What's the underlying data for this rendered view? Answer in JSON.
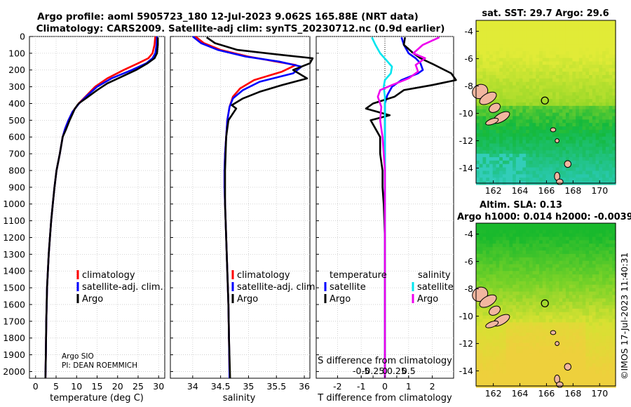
{
  "header": {
    "title_line1": "Argo profile: aoml 5905723_180 12-Jul-2023 9.062S 165.88E (NRT data)",
    "title_line2": "Climatology: CARS2009. Satellite-adj clim: synTS_20230712.nc (0.9d earlier)"
  },
  "credit": {
    "line1": "Argo SIO",
    "line2": "PI: DEAN ROEMMICH"
  },
  "side_stamp": "©IMOS 17-Jul-2023 11:40:31",
  "colors": {
    "clim": "#ff0000",
    "sat": "#0000ff",
    "argo": "#000000",
    "s_sat": "#00e5ee",
    "s_argo": "#ee00ee"
  },
  "depth_axis": {
    "ticks": [
      0,
      100,
      200,
      300,
      400,
      500,
      600,
      700,
      800,
      900,
      1000,
      1100,
      1200,
      1300,
      1400,
      1500,
      1600,
      1700,
      1800,
      1900,
      2000
    ],
    "labels": [
      "0",
      "100",
      "200",
      "300",
      "400",
      "500",
      "600",
      "700",
      "800",
      "900",
      "1000",
      "1100",
      "1200",
      "1300",
      "1400",
      "1500",
      "1600",
      "1700",
      "1800",
      "1900",
      "2000"
    ],
    "range": [
      0,
      2040
    ]
  },
  "chart_data": [
    {
      "type": "line",
      "id": "temperature",
      "xlabel": "temperature (deg C)",
      "xlim": [
        -1.5,
        31.5
      ],
      "xticks": [
        0,
        5,
        10,
        15,
        20,
        25,
        30
      ],
      "xtick_labels": [
        "0",
        "5",
        "10",
        "15",
        "20",
        "25",
        "30"
      ],
      "legend": [
        "climatology",
        "satellite-adj. clim.",
        "Argo"
      ],
      "series": [
        {
          "name": "climatology",
          "color": "clim",
          "x": [
            29.2,
            29.0,
            28.5,
            27.5,
            25.0,
            21.5,
            17.5,
            14.5,
            12.5,
            10.5,
            9.0,
            8.0,
            7.2,
            6.6,
            5.9,
            5.1,
            4.6,
            4.2,
            3.8,
            3.5,
            3.2,
            3.0,
            2.8,
            2.7,
            2.6,
            2.5,
            2.4
          ],
          "y": [
            0,
            50,
            100,
            130,
            160,
            200,
            250,
            300,
            350,
            400,
            450,
            500,
            550,
            600,
            700,
            800,
            900,
            1000,
            1100,
            1200,
            1300,
            1400,
            1500,
            1600,
            1700,
            1900,
            2040
          ]
        },
        {
          "name": "satellite-adj. clim.",
          "color": "sat",
          "x": [
            29.6,
            29.5,
            29.2,
            28.5,
            27.0,
            23.5,
            18.5,
            15.0,
            12.7,
            10.6,
            9.0,
            8.0,
            7.2,
            6.6,
            5.9,
            5.1,
            4.6,
            4.2,
            3.8,
            3.5,
            3.2,
            3.0,
            2.8,
            2.7,
            2.6,
            2.5,
            2.4
          ],
          "y": [
            0,
            50,
            100,
            130,
            160,
            200,
            250,
            300,
            350,
            400,
            450,
            500,
            550,
            600,
            700,
            800,
            900,
            1000,
            1100,
            1200,
            1300,
            1400,
            1500,
            1600,
            1700,
            1900,
            2040
          ]
        },
        {
          "name": "Argo",
          "color": "argo",
          "x": [
            29.8,
            29.8,
            29.6,
            29.0,
            27.3,
            24.5,
            21.0,
            17.5,
            15.0,
            12.8,
            10.5,
            9.6,
            8.3,
            7.5,
            6.6,
            5.9,
            5.1,
            4.6,
            4.2,
            3.8,
            3.5,
            3.2,
            3.0,
            2.8,
            2.6,
            2.5,
            2.4
          ],
          "y": [
            5,
            50,
            100,
            130,
            160,
            200,
            240,
            280,
            320,
            360,
            400,
            430,
            500,
            550,
            600,
            700,
            800,
            900,
            1000,
            1100,
            1200,
            1300,
            1400,
            1500,
            1700,
            1900,
            2040
          ]
        }
      ]
    },
    {
      "type": "line",
      "id": "salinity",
      "xlabel": "salinity",
      "xlim": [
        33.6,
        36.1
      ],
      "xticks": [
        34,
        34.5,
        35,
        35.5,
        36
      ],
      "xtick_labels": [
        "34",
        "34.5",
        "35",
        "35.5",
        "36"
      ],
      "legend": [
        "climatology",
        "satellite-adj. clim.",
        "Argo"
      ],
      "series": [
        {
          "name": "climatology",
          "color": "clim",
          "x": [
            34.05,
            34.2,
            34.5,
            35.0,
            35.5,
            35.85,
            35.6,
            35.1,
            34.85,
            34.72,
            34.66,
            34.62,
            34.6,
            34.58,
            34.57,
            34.57,
            34.58,
            34.6,
            34.62,
            34.64,
            34.65,
            34.66
          ],
          "y": [
            0,
            40,
            80,
            120,
            150,
            170,
            210,
            260,
            310,
            360,
            420,
            500,
            600,
            700,
            800,
            900,
            1000,
            1200,
            1400,
            1600,
            1800,
            2040
          ]
        },
        {
          "name": "satellite-adj. clim.",
          "color": "sat",
          "x": [
            34.0,
            34.15,
            34.45,
            34.95,
            35.55,
            35.95,
            35.8,
            35.2,
            34.9,
            34.72,
            34.66,
            34.62,
            34.6,
            34.58,
            34.57,
            34.57,
            34.58,
            34.6,
            34.62,
            34.64,
            34.65,
            34.66
          ],
          "y": [
            0,
            40,
            80,
            120,
            150,
            180,
            220,
            270,
            320,
            370,
            420,
            500,
            600,
            700,
            800,
            900,
            1000,
            1200,
            1400,
            1600,
            1800,
            2040
          ]
        },
        {
          "name": "Argo",
          "color": "argo",
          "x": [
            34.25,
            34.4,
            34.8,
            35.6,
            36.15,
            36.1,
            35.8,
            36.05,
            35.6,
            35.2,
            34.9,
            34.7,
            34.78,
            34.64,
            34.6,
            34.58,
            34.58,
            34.6,
            34.62,
            34.64,
            34.65,
            34.67
          ],
          "y": [
            5,
            40,
            80,
            110,
            130,
            160,
            200,
            250,
            290,
            330,
            370,
            410,
            430,
            500,
            600,
            800,
            1000,
            1200,
            1400,
            1600,
            1800,
            2040
          ]
        }
      ]
    },
    {
      "type": "line",
      "id": "difference",
      "xlabel": "T difference from climatology",
      "xlabel_top": "S difference from climatology",
      "xlim": [
        -2.9,
        2.9
      ],
      "xticks": [
        -2,
        -1,
        0,
        1,
        2
      ],
      "xtick_labels": [
        "-2",
        "-1",
        "0",
        "1",
        "2"
      ],
      "s_ticks": [
        -0.5,
        -0.25,
        0,
        0.25,
        0.5
      ],
      "s_tick_labels": [
        "-0.5",
        "-0.25",
        "0",
        "0.25",
        "0.5"
      ],
      "s_scale": 2,
      "legend_titles": [
        "temperature",
        "salinity"
      ],
      "legend_t": [
        "satellite",
        "Argo"
      ],
      "legend_s": [
        "satellite",
        "Argo"
      ],
      "series": [
        {
          "name": "T satellite",
          "color": "sat",
          "x": [
            0.7,
            0.8,
            1.0,
            1.3,
            1.5,
            1.6,
            1.4,
            0.7,
            0.3,
            0.1,
            0.0,
            0.0,
            0.0,
            0.0,
            0.0,
            0.0,
            0.0,
            0.0
          ],
          "y": [
            5,
            50,
            100,
            130,
            160,
            200,
            220,
            260,
            300,
            350,
            400,
            500,
            700,
            900,
            1100,
            1400,
            1700,
            2040
          ]
        },
        {
          "name": "T Argo",
          "color": "argo",
          "x": [
            0.85,
            0.8,
            1.2,
            1.5,
            2.1,
            2.8,
            3.0,
            2.0,
            0.8,
            0.4,
            -0.5,
            -0.8,
            0.2,
            -0.6,
            -0.4,
            -0.2,
            -0.2,
            -0.1,
            -0.1,
            -0.05,
            0.0,
            0.0,
            0.0,
            0.0,
            0.0
          ],
          "y": [
            5,
            50,
            100,
            130,
            170,
            220,
            260,
            290,
            320,
            360,
            400,
            430,
            470,
            500,
            550,
            600,
            700,
            800,
            900,
            1000,
            1200,
            1400,
            1600,
            1800,
            2040
          ]
        },
        {
          "name": "S satellite",
          "color": "s_sat",
          "x": [
            -0.55,
            -0.4,
            -0.2,
            0.05,
            0.3,
            0.25,
            0.0,
            -0.05,
            0.0,
            0.0,
            0.0,
            0.0,
            0.0,
            0.0,
            0.0
          ],
          "y": [
            5,
            50,
            100,
            140,
            180,
            220,
            260,
            300,
            360,
            420,
            600,
            900,
            1300,
            1700,
            2040
          ]
        },
        {
          "name": "S Argo",
          "color": "s_argo",
          "x": [
            2.3,
            1.6,
            1.2,
            1.7,
            1.3,
            1.4,
            1.0,
            0.3,
            -0.2,
            -0.3,
            -0.15,
            -0.2,
            -0.1,
            0.0,
            0.0,
            0.0,
            0.0
          ],
          "y": [
            5,
            50,
            100,
            130,
            170,
            210,
            250,
            290,
            320,
            360,
            420,
            500,
            600,
            800,
            1200,
            1600,
            2040
          ]
        }
      ]
    },
    {
      "type": "heatmap",
      "id": "sst_map",
      "title": "sat. SST: 29.7 Argo: 29.6",
      "xlim": [
        160.7,
        171.2
      ],
      "ylim": [
        -15.1,
        -3.2
      ],
      "xticks": [
        162,
        164,
        166,
        168,
        170
      ],
      "xtick_labels": [
        "162",
        "164",
        "166",
        "168",
        "170"
      ],
      "yticks": [
        -4,
        -6,
        -8,
        -10,
        -12,
        -14
      ],
      "ytick_labels": [
        "-4",
        "-6",
        "-8",
        "-10",
        "-12",
        "-14"
      ],
      "marker": [
        165.88,
        -9.06
      ]
    },
    {
      "type": "heatmap",
      "id": "sla_map",
      "title": "Altim. SLA: 0.13",
      "subtitle": "Argo h1000: 0.014 h2000: -0.0039",
      "xlim": [
        160.7,
        171.2
      ],
      "ylim": [
        -15.1,
        -3.2
      ],
      "xticks": [
        162,
        164,
        166,
        168,
        170
      ],
      "xtick_labels": [
        "162",
        "164",
        "166",
        "168",
        "170"
      ],
      "yticks": [
        -4,
        -6,
        -8,
        -10,
        -12,
        -14
      ],
      "ytick_labels": [
        "-4",
        "-6",
        "-8",
        "-10",
        "-12",
        "-14"
      ],
      "marker": [
        165.88,
        -9.06
      ]
    }
  ]
}
